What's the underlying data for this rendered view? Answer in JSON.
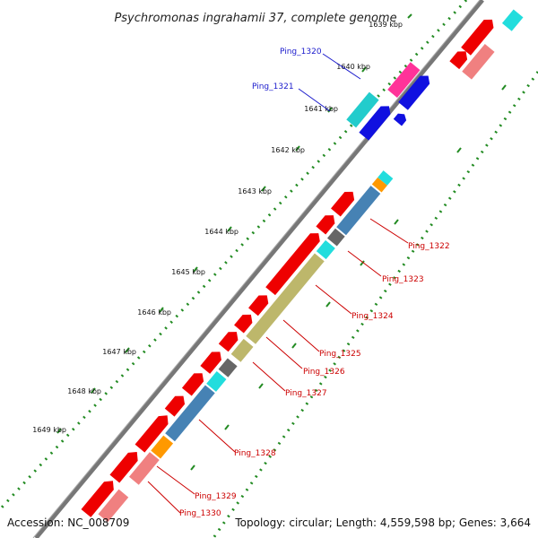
{
  "title": "Psychromonas ingrahamii 37, complete genome",
  "footer": {
    "accession": "Accession: NC_008709",
    "topology": "Topology: circular; Length: 4,559,598 bp; Genes: 3,664"
  },
  "kbp_ticks": [
    "1639 kbp",
    "1640 kbp",
    "1641 kbp",
    "1642 kbp",
    "1643 kbp",
    "1644 kbp",
    "1645 kbp",
    "1646 kbp",
    "1647 kbp",
    "1648 kbp",
    "1649 kbp"
  ],
  "gene_labels": [
    {
      "name": "Ping_1320",
      "color": "blue"
    },
    {
      "name": "Ping_1321",
      "color": "blue"
    },
    {
      "name": "Ping_1322",
      "color": "red"
    },
    {
      "name": "Ping_1323",
      "color": "red"
    },
    {
      "name": "Ping_1324",
      "color": "red"
    },
    {
      "name": "Ping_1325",
      "color": "red"
    },
    {
      "name": "Ping_1326",
      "color": "red"
    },
    {
      "name": "Ping_1327",
      "color": "red"
    },
    {
      "name": "Ping_1328",
      "color": "red"
    },
    {
      "name": "Ping_1329",
      "color": "red"
    },
    {
      "name": "Ping_1330",
      "color": "red"
    }
  ],
  "colors": {
    "red": "#ee0000",
    "pink": "#f08080",
    "magenta": "#ff3399",
    "blue": "#1010e0",
    "cyan": "#22dddd",
    "orange": "#ff9900",
    "steelblue": "#4682b4",
    "gray": "#666666",
    "khaki": "#bdb76b",
    "grid": "#228b22",
    "backbone": "#777777"
  }
}
